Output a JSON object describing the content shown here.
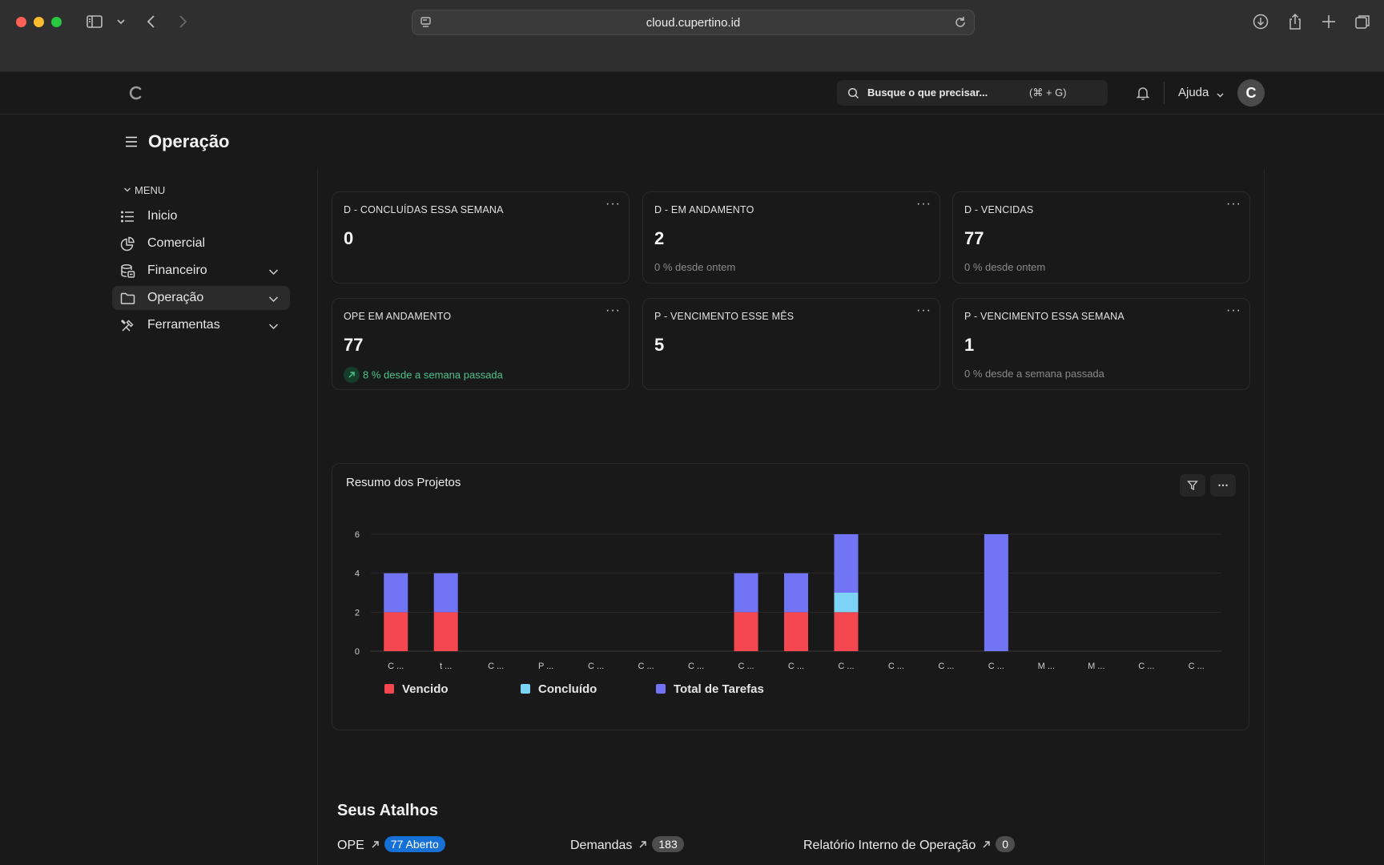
{
  "browser": {
    "url": "cloud.cupertino.id"
  },
  "header": {
    "logo_letter": "C",
    "search_placeholder": "Busque o que precisar...",
    "search_shortcut": "(⌘ + G)",
    "help_label": "Ajuda",
    "avatar_letter": "C"
  },
  "page": {
    "title": "Operação"
  },
  "sidebar": {
    "menu_heading": "MENU",
    "items": [
      {
        "label": "Inicio",
        "icon": "list-icon",
        "expandable": false,
        "active": false
      },
      {
        "label": "Comercial",
        "icon": "pie-chart-icon",
        "expandable": false,
        "active": false
      },
      {
        "label": "Financeiro",
        "icon": "database-icon",
        "expandable": true,
        "active": false
      },
      {
        "label": "Operação",
        "icon": "folder-icon",
        "expandable": true,
        "active": true
      },
      {
        "label": "Ferramentas",
        "icon": "tools-icon",
        "expandable": true,
        "active": false
      }
    ]
  },
  "kpis": [
    {
      "title": "D - CONCLUÍDAS ESSA SEMANA",
      "value": "0",
      "delta": ""
    },
    {
      "title": "D - EM ANDAMENTO",
      "value": "2",
      "delta": "0 % desde ontem"
    },
    {
      "title": "D - VENCIDAS",
      "value": "77",
      "delta": "0 % desde ontem"
    },
    {
      "title": "OPE EM ANDAMENTO",
      "value": "77",
      "delta": "8 % desde a semana passada",
      "positive": true
    },
    {
      "title": "P - VENCIMENTO ESSE MÊS",
      "value": "5",
      "delta": ""
    },
    {
      "title": "P - VENCIMENTO ESSA SEMANA",
      "value": "1",
      "delta": "0 % desde a semana passada"
    }
  ],
  "kpi_menu_glyph": "···",
  "chart": {
    "title": "Resumo dos Projetos"
  },
  "chart_data": {
    "type": "bar",
    "stacked": true,
    "categories": [
      "C ...",
      "t ...",
      "C ...",
      "P ...",
      "C ...",
      "C ...",
      "C ...",
      "C ...",
      "C ...",
      "C ...",
      "C ...",
      "C ...",
      "C ...",
      "M ...",
      "M ...",
      "C ...",
      "C ..."
    ],
    "series": [
      {
        "name": "Vencido",
        "color": "#f5474f",
        "values": [
          2,
          2,
          0,
          0,
          0,
          0,
          0,
          2,
          2,
          2,
          0,
          0,
          0,
          0,
          0,
          0,
          0
        ]
      },
      {
        "name": "Concluído",
        "color": "#7dd3f5",
        "values": [
          0,
          0,
          0,
          0,
          0,
          0,
          0,
          0,
          0,
          1,
          0,
          0,
          0,
          0,
          0,
          0,
          0
        ]
      },
      {
        "name": "Total de Tarefas",
        "color": "#7174f5",
        "values": [
          2,
          2,
          0,
          0,
          0,
          0,
          0,
          2,
          2,
          3,
          0,
          0,
          6,
          0,
          0,
          0,
          0
        ]
      }
    ],
    "y_ticks": [
      0,
      2,
      4,
      6
    ],
    "ylim": [
      0,
      6
    ],
    "grid": true,
    "legend": "bottom-left"
  },
  "shortcuts": {
    "title": "Seus Atalhos",
    "items": [
      {
        "label": "OPE",
        "badge": "77 Aberto",
        "badge_color": "#1670d6"
      },
      {
        "label": "Demandas",
        "badge": "183",
        "badge_color": "#4d4d4d"
      },
      {
        "label": "Relatório Interno de Operação",
        "badge": "0",
        "badge_color": "#4d4d4d"
      }
    ]
  }
}
